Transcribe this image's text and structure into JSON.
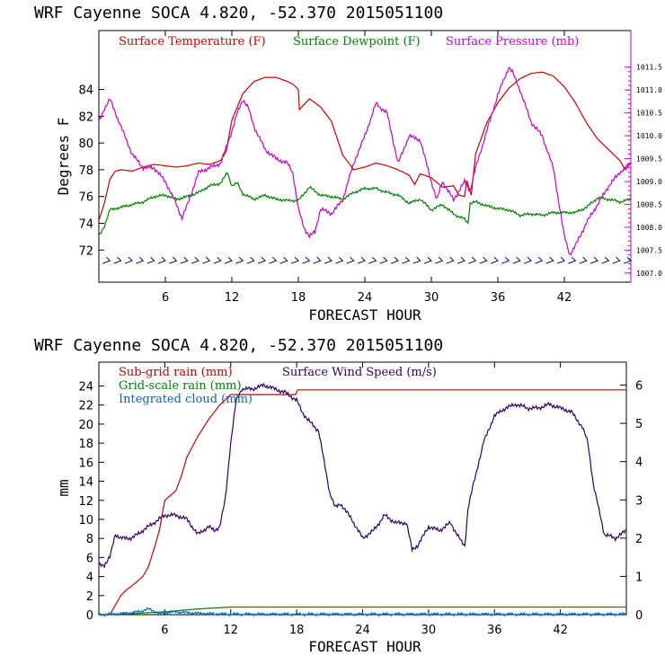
{
  "chart_data": [
    {
      "type": "line",
      "title": "WRF   Cayenne SOCA   4.820, -52.370  2015051100",
      "xlabel": "FORECAST HOUR",
      "ylabel": "Degrees F",
      "xlim": [
        0,
        48
      ],
      "ylim": [
        69.6,
        88.4
      ],
      "y2lim": [
        1006.8,
        1012.3
      ],
      "xticks": [
        6,
        12,
        18,
        24,
        30,
        36,
        42
      ],
      "yticks": [
        72,
        74,
        76,
        78,
        80,
        82,
        84
      ],
      "y2ticks": [
        1007.0,
        1007.5,
        1008.0,
        1008.5,
        1009.0,
        1009.5,
        1010.0,
        1010.5,
        1011.0,
        1011.5
      ],
      "y2ticklabels": [
        "1007.0",
        "1007.5",
        "1008.0",
        "1008.5",
        "1009.0",
        "1009.5",
        "1010.0",
        "1010.5",
        "1011.0",
        "1011.5"
      ],
      "y2color": "#cc00cc",
      "series": [
        {
          "name": "Surface Temperature (F)",
          "color": "#cc0000",
          "axis": "left",
          "x": [
            0,
            0.5,
            1,
            1.5,
            2,
            3,
            4,
            5,
            6,
            7,
            8,
            9,
            10,
            11,
            11.5,
            12,
            13,
            14,
            15,
            16,
            17,
            17.5,
            18,
            18.1,
            19,
            20,
            21,
            22,
            23,
            24,
            25,
            26,
            27,
            28,
            28.5,
            29,
            30,
            31,
            32,
            32.5,
            33,
            33.2,
            33.6,
            34,
            35,
            36,
            37,
            38,
            39,
            40,
            41,
            42,
            43,
            44,
            45,
            46,
            47,
            47.5,
            48
          ],
          "y": [
            74.2,
            75.5,
            77.3,
            77.9,
            78.0,
            77.9,
            78.2,
            78.4,
            78.3,
            78.2,
            78.3,
            78.5,
            78.4,
            78.7,
            79.4,
            81.7,
            83.7,
            84.6,
            84.9,
            84.9,
            84.6,
            84.4,
            84.0,
            82.5,
            83.3,
            82.7,
            81.6,
            79.1,
            78.0,
            78.2,
            78.5,
            78.3,
            78.0,
            77.6,
            76.9,
            77.7,
            77.4,
            76.7,
            76.8,
            76.1,
            76.0,
            77.2,
            76.1,
            79.2,
            81.5,
            83.0,
            84.1,
            84.8,
            85.2,
            85.3,
            85.0,
            84.2,
            83.0,
            81.5,
            80.3,
            79.5,
            78.7,
            78.0,
            78.5
          ]
        },
        {
          "name": "Surface Dewpoint (F)",
          "color": "#008000",
          "axis": "left",
          "x": [
            0,
            0.5,
            1,
            2,
            3,
            4,
            5,
            6,
            7,
            8,
            9,
            10,
            11,
            11.6,
            12,
            12.5,
            13,
            14,
            15,
            16,
            17,
            18,
            19,
            20,
            21,
            22,
            23,
            24,
            25,
            26,
            27,
            28,
            29,
            30,
            31,
            32,
            33,
            33.3,
            33.5,
            34,
            35,
            36,
            37,
            38,
            39,
            40,
            41,
            42,
            43,
            44,
            45,
            46,
            47,
            48
          ],
          "y": [
            73.0,
            73.8,
            75.0,
            75.2,
            75.4,
            75.6,
            76.0,
            76.1,
            75.8,
            76.0,
            76.3,
            76.8,
            77.0,
            77.8,
            76.8,
            77.0,
            76.2,
            75.8,
            76.1,
            75.8,
            75.7,
            75.7,
            76.7,
            76.1,
            76.0,
            75.8,
            76.3,
            76.6,
            76.6,
            76.3,
            76.1,
            75.5,
            75.8,
            75.0,
            75.4,
            74.7,
            74.3,
            74.0,
            75.5,
            75.6,
            75.3,
            75.1,
            75.0,
            74.6,
            74.7,
            74.6,
            74.8,
            74.8,
            74.8,
            75.2,
            75.9,
            75.8,
            75.6,
            75.8
          ]
        },
        {
          "name": "Surface Pressure (mb)",
          "color": "#cc00cc",
          "axis": "right",
          "x": [
            0,
            0.5,
            1,
            1.5,
            2,
            2.5,
            3,
            4,
            5,
            6,
            7,
            7.5,
            8,
            9,
            10,
            11,
            12,
            12.5,
            13,
            13.5,
            14,
            15,
            16,
            17,
            17.5,
            18,
            18.5,
            19,
            19.5,
            20,
            21,
            22,
            23,
            24,
            25,
            26,
            27,
            28,
            29,
            30,
            30.5,
            31,
            32,
            33,
            33.5,
            34,
            35,
            36,
            37,
            37.3,
            38,
            39,
            40,
            41,
            42,
            42.5,
            43,
            44,
            45,
            46,
            47,
            48
          ],
          "y": [
            1010.3,
            1010.6,
            1010.8,
            1010.5,
            1010.2,
            1009.9,
            1009.6,
            1009.3,
            1009.3,
            1009.0,
            1008.5,
            1008.2,
            1008.5,
            1009.2,
            1009.3,
            1009.4,
            1010.1,
            1010.5,
            1010.8,
            1010.6,
            1010.2,
            1009.7,
            1009.5,
            1009.4,
            1009.2,
            1008.4,
            1008.0,
            1007.8,
            1007.9,
            1008.4,
            1008.3,
            1008.6,
            1009.4,
            1010.0,
            1010.7,
            1010.5,
            1009.4,
            1010.0,
            1009.9,
            1009.0,
            1008.6,
            1009.0,
            1008.6,
            1009.0,
            1008.8,
            1009.3,
            1010.1,
            1010.9,
            1011.5,
            1011.4,
            1011.0,
            1010.3,
            1010.0,
            1009.3,
            1007.8,
            1007.4,
            1007.6,
            1008.1,
            1008.5,
            1008.9,
            1009.2,
            1009.4
          ]
        }
      ],
      "barbs": {
        "name": "Wind barbs",
        "color": "#000066",
        "y": 71.2,
        "x_start": 1,
        "x_end": 48,
        "step": 1
      }
    },
    {
      "type": "line",
      "title": "WRF   Cayenne SOCA   4.820, -52.370  2015051100",
      "xlabel": "FORECAST HOUR",
      "ylabel": "mm",
      "xlim": [
        0,
        48
      ],
      "ylim": [
        0,
        26.5
      ],
      "y2lim": [
        0,
        6.6
      ],
      "xticks": [
        6,
        12,
        18,
        24,
        30,
        36,
        42
      ],
      "yticks": [
        0,
        2,
        4,
        6,
        8,
        10,
        12,
        14,
        16,
        18,
        20,
        22,
        24
      ],
      "y2ticks": [
        0,
        1,
        2,
        3,
        4,
        5,
        6
      ],
      "y2ticklabels": [
        "0",
        "1",
        "2",
        "3",
        "4",
        "5",
        "6"
      ],
      "y2color": "#000000",
      "series": [
        {
          "name": "Sub-grid rain (mm)",
          "color": "#cc0000",
          "axis": "left",
          "x": [
            0,
            1,
            1.5,
            2,
            2.5,
            3,
            4,
            4.5,
            5,
            5.5,
            6,
            7,
            7.5,
            8,
            9,
            10,
            11,
            12,
            13,
            17.9,
            18.1,
            48
          ],
          "y": [
            0,
            0,
            1.0,
            2.0,
            2.6,
            3.0,
            4.0,
            5.0,
            6.8,
            8.8,
            12.0,
            13.0,
            14.5,
            16.5,
            18.7,
            20.5,
            22.0,
            23.1,
            23.1,
            23.1,
            23.6,
            23.6
          ]
        },
        {
          "name": "Grid-scale rain (mm)",
          "color": "#008000",
          "axis": "left",
          "x": [
            0,
            3,
            6,
            9,
            12,
            18,
            24,
            30,
            36,
            42,
            48
          ],
          "y": [
            0,
            0.1,
            0.3,
            0.6,
            0.8,
            0.8,
            0.8,
            0.8,
            0.8,
            0.8,
            0.8
          ]
        },
        {
          "name": "Integrated cloud (mm)",
          "color": "#0066cc",
          "axis": "left",
          "x": [
            0,
            2,
            3,
            4,
            4.5,
            5,
            5.5,
            6,
            7,
            8,
            10,
            12,
            24,
            36,
            48
          ],
          "y": [
            0,
            0.1,
            0.2,
            0.4,
            0.6,
            0.4,
            0.1,
            0.2,
            0.3,
            0.2,
            0.1,
            0.05,
            0.05,
            0.05,
            0.05
          ]
        },
        {
          "name": "Surface Wind Speed (m/s)",
          "color": "#330066",
          "axis": "right",
          "x": [
            0,
            0.5,
            1,
            1.5,
            2,
            2.5,
            3,
            4,
            5,
            5.5,
            6,
            7,
            8,
            9,
            10,
            10.5,
            11,
            11.5,
            12,
            12.5,
            13,
            14,
            15,
            16,
            17,
            18,
            18.5,
            19,
            20,
            21,
            21.5,
            22,
            23,
            24,
            25,
            26,
            27,
            28,
            28.5,
            29,
            30,
            31,
            32,
            33,
            33.3,
            33.6,
            34,
            35,
            36,
            37,
            38,
            39,
            40,
            41,
            42,
            43,
            44,
            44.5,
            45,
            46,
            47,
            48
          ],
          "y": [
            1.3,
            1.3,
            1.5,
            2.1,
            2.0,
            2.0,
            2.0,
            2.2,
            2.4,
            2.5,
            2.6,
            2.6,
            2.5,
            2.1,
            2.3,
            2.2,
            2.3,
            3.0,
            4.5,
            5.6,
            5.9,
            5.9,
            6.0,
            5.9,
            5.8,
            5.6,
            5.3,
            5.1,
            4.8,
            3.2,
            2.8,
            2.9,
            2.5,
            2.0,
            2.2,
            2.6,
            2.4,
            2.4,
            1.7,
            1.8,
            2.3,
            2.2,
            2.4,
            1.9,
            1.8,
            2.8,
            3.3,
            4.5,
            5.2,
            5.4,
            5.5,
            5.4,
            5.4,
            5.5,
            5.4,
            5.3,
            4.9,
            4.5,
            3.4,
            2.1,
            2.0,
            2.2
          ]
        }
      ]
    }
  ]
}
